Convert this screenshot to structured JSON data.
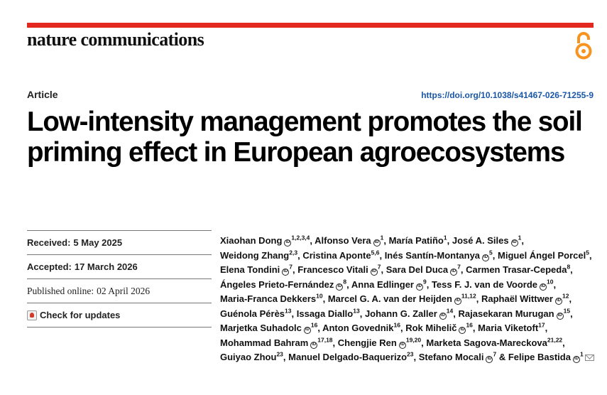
{
  "journal": {
    "name": "nature communications"
  },
  "article": {
    "type": "Article",
    "doi": "https://doi.org/10.1038/s41467-026-71255-9",
    "title": "Low-intensity management promotes the soil priming effect in European agroecosystems"
  },
  "dates": {
    "received_label": "Received:",
    "received": "5 May 2025",
    "accepted_label": "Accepted:",
    "accepted": "17 March 2026",
    "published_label": "Published online:",
    "published": "02 April 2026",
    "check_updates": "Check for updates"
  },
  "authors": [
    {
      "name": "Xiaohan Dong",
      "orcid": true,
      "aff": "1,2,3,4"
    },
    {
      "name": "Alfonso Vera",
      "orcid": true,
      "aff": "1"
    },
    {
      "name": "María Patiño",
      "orcid": false,
      "aff": "1"
    },
    {
      "name": "José A. Siles",
      "orcid": true,
      "aff": "1"
    },
    {
      "name": "Weidong Zhang",
      "orcid": false,
      "aff": "2,3"
    },
    {
      "name": "Cristina Aponte",
      "orcid": false,
      "aff": "5,6"
    },
    {
      "name": "Inés Santín-Montanya",
      "orcid": true,
      "aff": "5"
    },
    {
      "name": "Miguel Ángel Porcel",
      "orcid": false,
      "aff": "5"
    },
    {
      "name": "Elena Tondini",
      "orcid": true,
      "aff": "7"
    },
    {
      "name": "Francesco Vitali",
      "orcid": true,
      "aff": "7"
    },
    {
      "name": "Sara Del Duca",
      "orcid": true,
      "aff": "7"
    },
    {
      "name": "Carmen Trasar-Cepeda",
      "orcid": false,
      "aff": "8"
    },
    {
      "name": "Ángeles Prieto-Fernández",
      "orcid": true,
      "aff": "8"
    },
    {
      "name": "Anna Edlinger",
      "orcid": true,
      "aff": "9"
    },
    {
      "name": "Tess F. J. van de Voorde",
      "orcid": true,
      "aff": "10"
    },
    {
      "name": "Maria-Franca Dekkers",
      "orcid": false,
      "aff": "10"
    },
    {
      "name": "Marcel G. A. van der Heijden",
      "orcid": true,
      "aff": "11,12"
    },
    {
      "name": "Raphaël Wittwer",
      "orcid": true,
      "aff": "12"
    },
    {
      "name": "Guénola Pérès",
      "orcid": false,
      "aff": "13"
    },
    {
      "name": "Issaga Diallo",
      "orcid": false,
      "aff": "13"
    },
    {
      "name": "Johann G. Zaller",
      "orcid": true,
      "aff": "14"
    },
    {
      "name": "Rajasekaran Murugan",
      "orcid": true,
      "aff": "15"
    },
    {
      "name": "Marjetka Suhadolc",
      "orcid": true,
      "aff": "16"
    },
    {
      "name": "Anton Govednik",
      "orcid": false,
      "aff": "16"
    },
    {
      "name": "Rok Mihelič",
      "orcid": true,
      "aff": "16"
    },
    {
      "name": "Maria Viketoft",
      "orcid": false,
      "aff": "17"
    },
    {
      "name": "Mohammad Bahram",
      "orcid": true,
      "aff": "17,18"
    },
    {
      "name": "Chengjie Ren",
      "orcid": true,
      "aff": "19,20"
    },
    {
      "name": "Marketa Sagova-Mareckova",
      "orcid": false,
      "aff": "21,22"
    },
    {
      "name": "Guiyao Zhou",
      "orcid": false,
      "aff": "23"
    },
    {
      "name": "Manuel Delgado-Baquerizo",
      "orcid": false,
      "aff": "23"
    },
    {
      "name": "Stefano Mocali",
      "orcid": true,
      "aff": "7"
    },
    {
      "name": "Felipe Bastida",
      "orcid": true,
      "aff": "1",
      "corresponding": true
    }
  ],
  "colors": {
    "accent_bar": "#e3281f",
    "oa_orange": "#f7931e",
    "doi_link": "#1a56a8"
  },
  "icons": {
    "open_access": "open-access-lock-icon",
    "orcid": "orcid-icon",
    "mail": "mail-icon",
    "updates": "check-for-updates-icon"
  }
}
